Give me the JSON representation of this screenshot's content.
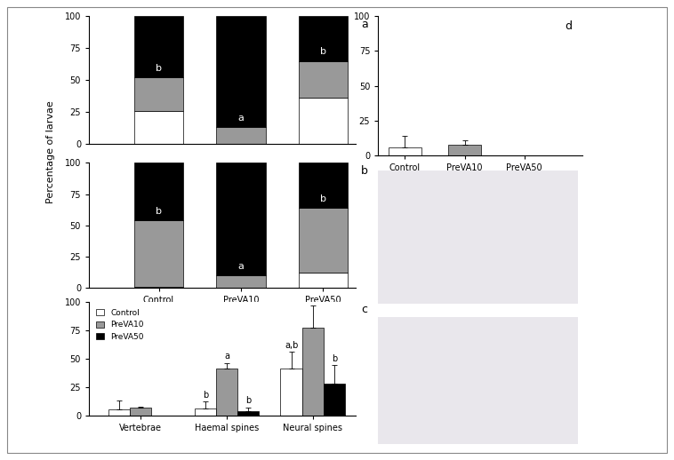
{
  "chart_data": [
    {
      "type": "bar",
      "stacked": true,
      "title": "a",
      "ylabel": "Percentage of larvae",
      "categories": [
        "Control",
        "PreVA10",
        "PreVA50"
      ],
      "tick_labels": "y",
      "series": [
        {
          "color": "#ffffff",
          "values": [
            26,
            0,
            36
          ]
        },
        {
          "color": "#999999",
          "values": [
            26,
            13,
            29
          ]
        },
        {
          "color": "#000000",
          "values": [
            48,
            87,
            35
          ]
        }
      ],
      "letters": [
        "b",
        "a",
        "b"
      ],
      "ylim": [
        0,
        100
      ],
      "yticks": [
        0,
        25,
        50,
        75,
        100
      ]
    },
    {
      "type": "bar",
      "stacked": true,
      "title": "b",
      "categories": [
        "Control",
        "PreVA10",
        "PreVA50"
      ],
      "series": [
        {
          "color": "#ffffff",
          "values": [
            1,
            0,
            12
          ]
        },
        {
          "color": "#999999",
          "values": [
            53,
            10,
            52
          ]
        },
        {
          "color": "#000000",
          "values": [
            46,
            90,
            36
          ]
        }
      ],
      "letters": [
        "b",
        "a",
        "b"
      ],
      "ylim": [
        0,
        100
      ],
      "yticks": [
        0,
        25,
        50,
        75,
        100
      ]
    },
    {
      "type": "grouped_bar",
      "title": "c",
      "legend": "upper left",
      "categories": [
        "Vertebrae",
        "Haemal spines",
        "Neural spines"
      ],
      "series": [
        {
          "name": "Control",
          "color": "#ffffff",
          "values": [
            5,
            6,
            41
          ],
          "errors": [
            8,
            6,
            15
          ],
          "letters": [
            null,
            "b",
            "a,b"
          ]
        },
        {
          "name": "PreVA10",
          "color": "#999999",
          "values": [
            7,
            41,
            77
          ],
          "errors": [
            1,
            5,
            20
          ],
          "letters": [
            null,
            "a",
            null
          ]
        },
        {
          "name": "PreVA50",
          "color": "#000000",
          "values": [
            0,
            4,
            28
          ],
          "errors": [
            0,
            3,
            16
          ],
          "letters": [
            null,
            "b",
            "b"
          ]
        }
      ],
      "ylim": [
        0,
        100
      ],
      "yticks": [
        0,
        25,
        50,
        75,
        100
      ]
    },
    {
      "type": "simple_bar",
      "title": "d",
      "categories": [
        "Control",
        "PreVA10",
        "PreVA50"
      ],
      "values": [
        6,
        8,
        0
      ],
      "errors": [
        8,
        3,
        0
      ],
      "colors": [
        "#ffffff",
        "#999999",
        "#000000"
      ],
      "ylim": [
        0,
        100
      ],
      "yticks": [
        0,
        25,
        50,
        75,
        100
      ]
    }
  ]
}
